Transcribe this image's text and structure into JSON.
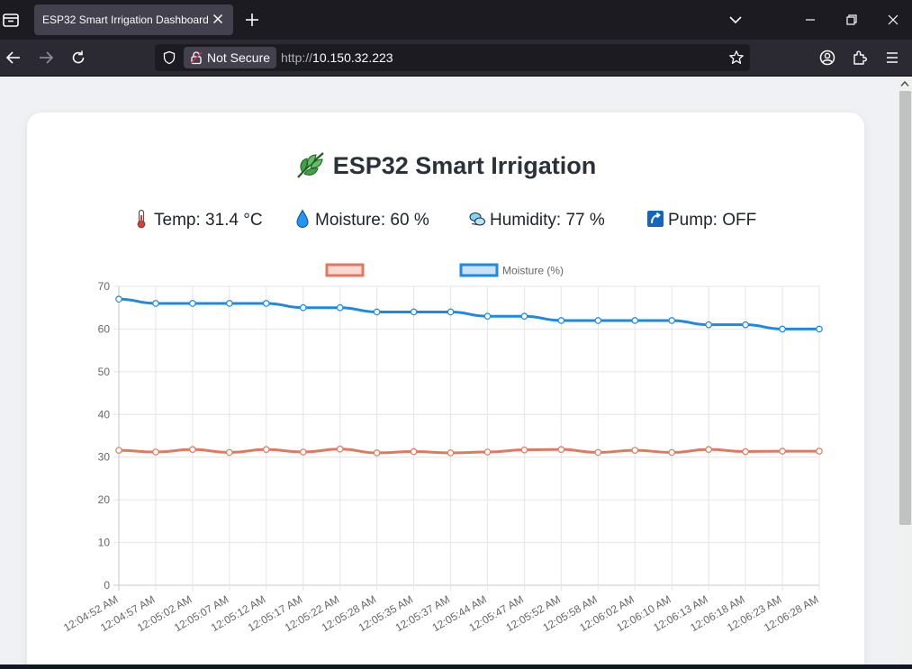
{
  "browser": {
    "tab_title": "ESP32 Smart Irrigation Dashboard",
    "security_label": "Not Secure",
    "url_scheme": "http://",
    "url_host": "10.150.32.223"
  },
  "page": {
    "title": "ESP32 Smart Irrigation",
    "stats": {
      "temp": "Temp: 31.4 °C",
      "moisture": "Moisture: 60 %",
      "humidity": "Humidity: 77 %",
      "pump": "Pump: OFF"
    }
  },
  "chart_data": {
    "type": "line",
    "categories": [
      "12:04:52 AM",
      "12:04:57 AM",
      "12:05:02 AM",
      "12:05:07 AM",
      "12:05:12 AM",
      "12:05:17 AM",
      "12:05:22 AM",
      "12:05:28 AM",
      "12:05:35 AM",
      "12:05:37 AM",
      "12:05:44 AM",
      "12:05:47 AM",
      "12:05:52 AM",
      "12:05:58 AM",
      "12:06:02 AM",
      "12:06:10 AM",
      "12:06:13 AM",
      "12:06:18 AM",
      "12:06:23 AM",
      "12:06:28 AM"
    ],
    "series": [
      {
        "name": "",
        "color": "#e07a5f",
        "values": [
          31.6,
          31.2,
          31.8,
          31.1,
          31.8,
          31.2,
          31.9,
          31.0,
          31.3,
          31.0,
          31.2,
          31.7,
          31.8,
          31.1,
          31.6,
          31.1,
          31.8,
          31.3,
          31.4,
          31.4
        ]
      },
      {
        "name": "Moisture (%)",
        "color": "#1e88e5",
        "values": [
          67,
          66,
          66,
          66,
          66,
          65,
          65,
          64,
          64,
          64,
          63,
          63,
          62,
          62,
          62,
          62,
          61,
          61,
          60,
          60
        ]
      }
    ],
    "yticks": [
      "0",
      "10",
      "20",
      "30",
      "40",
      "50",
      "60",
      "70"
    ],
    "ylim": [
      0,
      70
    ],
    "grid": true,
    "legend": "top-center"
  }
}
